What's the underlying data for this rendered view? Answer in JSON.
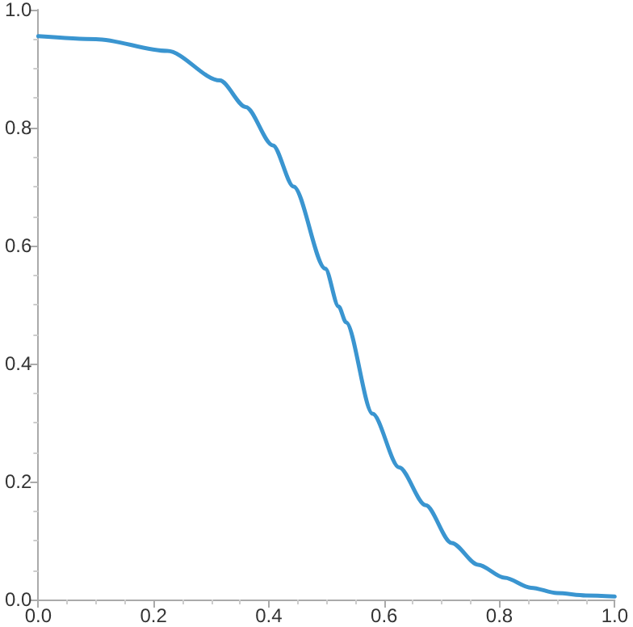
{
  "chart_data": {
    "type": "line",
    "xlim": [
      0,
      1
    ],
    "ylim": [
      0,
      1
    ],
    "xticks": [
      {
        "value": 0,
        "label": "0.0"
      },
      {
        "value": 0.2,
        "label": "0.2"
      },
      {
        "value": 0.4,
        "label": "0.4"
      },
      {
        "value": 0.6,
        "label": "0.6"
      },
      {
        "value": 0.8,
        "label": "0.8"
      },
      {
        "value": 1,
        "label": "1.0"
      }
    ],
    "yticks": [
      {
        "value": 0,
        "label": "0.0"
      },
      {
        "value": 0.2,
        "label": "0.2"
      },
      {
        "value": 0.4,
        "label": "0.4"
      },
      {
        "value": 0.6,
        "label": "0.6"
      },
      {
        "value": 0.8,
        "label": "0.8"
      },
      {
        "value": 1,
        "label": "1.0"
      }
    ],
    "grid": false,
    "marker": "none",
    "line_style": "solid",
    "series": [
      {
        "color": "#3a95d0",
        "x": [
          0,
          0.1,
          0.224,
          0.315,
          0.36,
          0.407,
          0.443,
          0.498,
          0.521,
          0.534,
          0.58,
          0.626,
          0.672,
          0.717,
          0.763,
          0.809,
          0.855,
          0.9,
          0.95,
          1
        ],
        "values": [
          0.955,
          0.95,
          0.93,
          0.88,
          0.835,
          0.77,
          0.7,
          0.561,
          0.497,
          0.47,
          0.315,
          0.224,
          0.16,
          0.096,
          0.059,
          0.037,
          0.02,
          0.011,
          0.007,
          0.005
        ]
      }
    ]
  }
}
